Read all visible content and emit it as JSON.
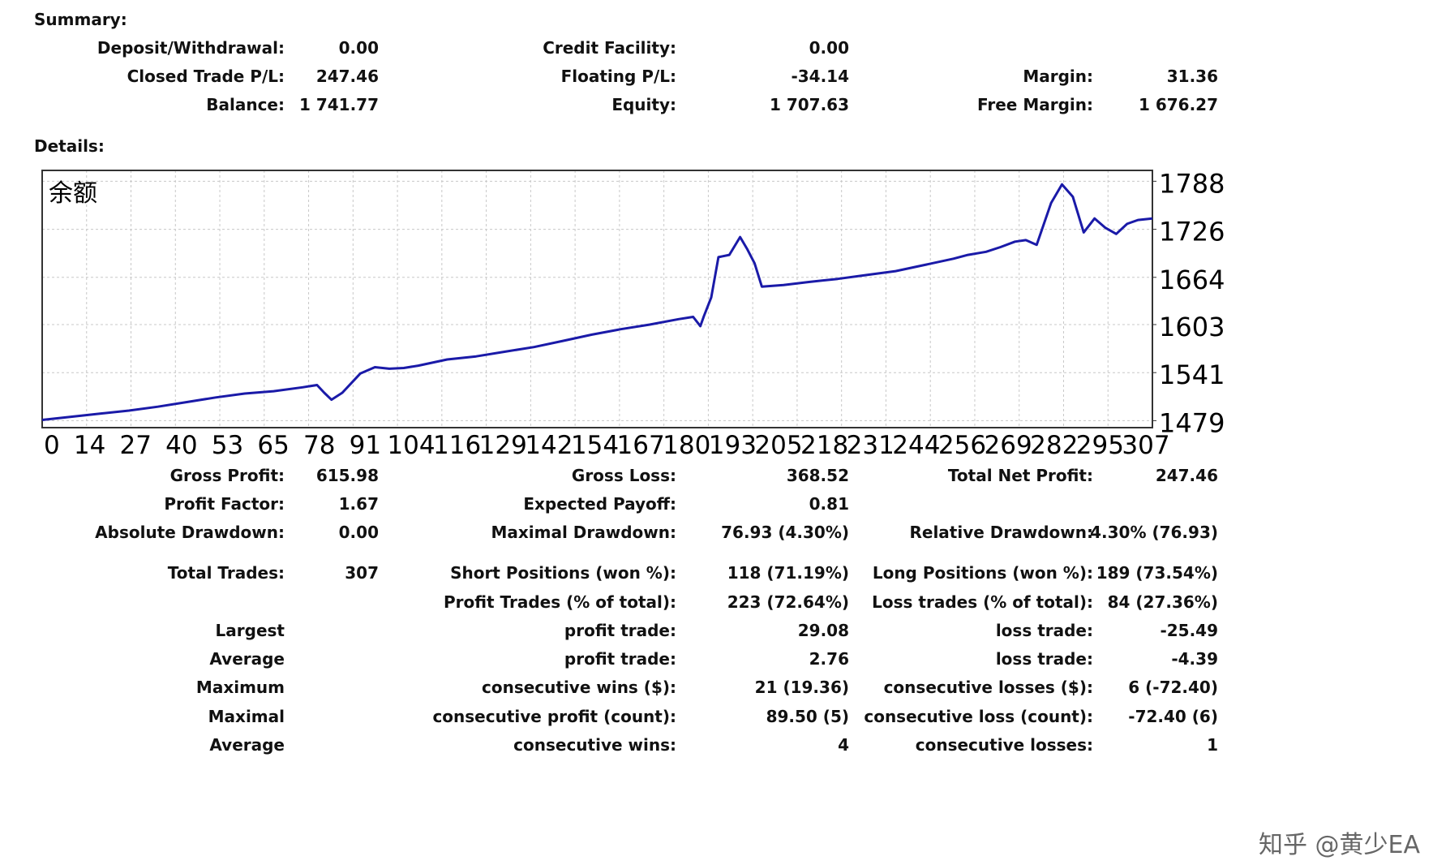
{
  "summary": {
    "title": "Summary:",
    "deposit_label": "Deposit/Withdrawal:",
    "deposit_value": "0.00",
    "credit_label": "Credit Facility:",
    "credit_value": "0.00",
    "closed_label": "Closed Trade P/L:",
    "closed_value": "247.46",
    "floating_label": "Floating P/L:",
    "floating_value": "-34.14",
    "margin_label": "Margin:",
    "margin_value": "31.36",
    "balance_label": "Balance:",
    "balance_value": "1 741.77",
    "equity_label": "Equity:",
    "equity_value": "1 707.63",
    "free_margin_label": "Free Margin:",
    "free_margin_value": "1 676.27"
  },
  "details": {
    "title": "Details:",
    "gross_profit_label": "Gross Profit:",
    "gross_profit_value": "615.98",
    "gross_loss_label": "Gross Loss:",
    "gross_loss_value": "368.52",
    "total_net_label": "Total Net Profit:",
    "total_net_value": "247.46",
    "profit_factor_label": "Profit Factor:",
    "profit_factor_value": "1.67",
    "expected_payoff_label": "Expected Payoff:",
    "expected_payoff_value": "0.81",
    "abs_dd_label": "Absolute Drawdown:",
    "abs_dd_value": "0.00",
    "max_dd_label": "Maximal Drawdown:",
    "max_dd_value": "76.93 (4.30%)",
    "rel_dd_label": "Relative Drawdown:",
    "rel_dd_value": "4.30% (76.93)",
    "total_trades_label": "Total Trades:",
    "total_trades_value": "307",
    "short_label": "Short Positions (won %):",
    "short_value": "118 (71.19%)",
    "long_label": "Long Positions (won %):",
    "long_value": "189 (73.54%)",
    "profit_trades_label": "Profit Trades (% of total):",
    "profit_trades_value": "223 (72.64%)",
    "loss_trades_label": "Loss trades (% of total):",
    "loss_trades_value": "84 (27.36%)",
    "largest_label": "Largest",
    "largest_profit_label": "profit trade:",
    "largest_profit_value": "29.08",
    "largest_loss_label": "loss trade:",
    "largest_loss_value": "-25.49",
    "average_label": "Average",
    "average_profit_label": "profit trade:",
    "average_profit_value": "2.76",
    "average_loss_label": "loss trade:",
    "average_loss_value": "-4.39",
    "maximum_label": "Maximum",
    "max_cons_wins_label": "consecutive wins ($):",
    "max_cons_wins_value": "21 (19.36)",
    "max_cons_losses_label": "consecutive losses ($):",
    "max_cons_losses_value": "6 (-72.40)",
    "maximal_label": "Maximal",
    "maximal_profit_label": "consecutive profit (count):",
    "maximal_profit_value": "89.50 (5)",
    "maximal_loss_label": "consecutive loss (count):",
    "maximal_loss_value": "-72.40 (6)",
    "average2_label": "Average",
    "avg_cons_wins_label": "consecutive wins:",
    "avg_cons_wins_value": "4",
    "avg_cons_losses_label": "consecutive losses:",
    "avg_cons_losses_value": "1"
  },
  "watermark": "知乎 @黄少EA",
  "chart_data": {
    "type": "line",
    "title": "余额",
    "xlabel": "",
    "ylabel": "",
    "x_ticks": [
      "0",
      "14",
      "27",
      "40",
      "53",
      "65",
      "78",
      "91",
      "104",
      "116",
      "129",
      "142",
      "154",
      "167",
      "180",
      "193",
      "205",
      "218",
      "231",
      "244",
      "256",
      "269",
      "282",
      "295",
      "307"
    ],
    "y_ticks": [
      "1788",
      "1726",
      "1664",
      "1603",
      "1541",
      "1479"
    ],
    "xlim": [
      0,
      307
    ],
    "ylim": [
      1470,
      1802
    ],
    "grid": true,
    "line_color": "#1a1aa8",
    "series": [
      {
        "x": [
          0,
          8,
          16,
          24,
          32,
          40,
          48,
          56,
          64,
          72,
          76,
          78,
          80,
          83,
          86,
          88,
          92,
          96,
          100,
          104,
          112,
          120,
          128,
          136,
          144,
          152,
          160,
          168,
          176,
          180,
          182,
          183,
          185,
          187,
          190,
          193,
          195,
          197,
          199,
          205,
          212,
          220,
          228,
          236,
          244,
          252,
          256,
          261,
          265,
          269,
          272,
          275,
          279,
          282,
          285,
          288,
          291,
          294,
          297,
          300,
          303,
          307
        ],
        "y": [
          1480,
          1484,
          1488,
          1492,
          1497,
          1503,
          1509,
          1514,
          1517,
          1522,
          1525,
          1515,
          1506,
          1515,
          1530,
          1540,
          1548,
          1546,
          1547,
          1550,
          1558,
          1562,
          1568,
          1574,
          1582,
          1590,
          1597,
          1603,
          1610,
          1613,
          1601,
          1614,
          1638,
          1690,
          1693,
          1716,
          1700,
          1682,
          1652,
          1654,
          1658,
          1662,
          1667,
          1672,
          1680,
          1688,
          1693,
          1697,
          1703,
          1710,
          1712,
          1706,
          1760,
          1784,
          1768,
          1722,
          1740,
          1728,
          1720,
          1733,
          1738,
          1740
        ]
      }
    ]
  }
}
